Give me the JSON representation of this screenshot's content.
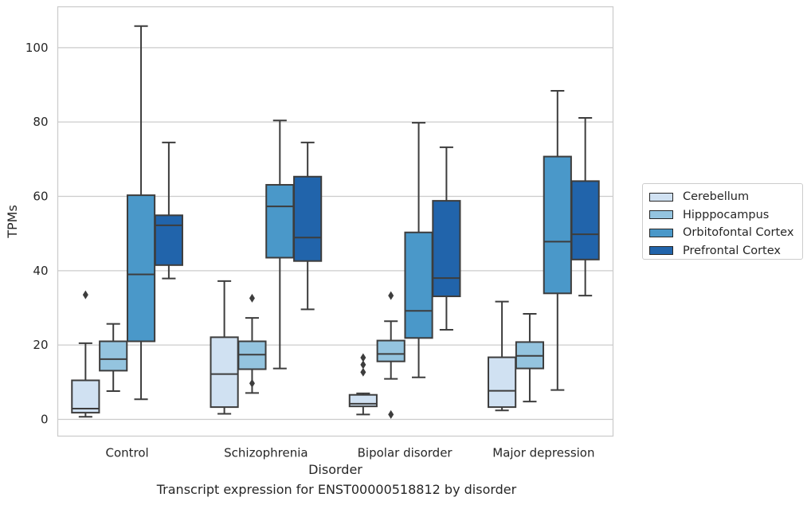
{
  "chart_data": {
    "type": "box",
    "caption": "Transcript expression for ENST00000518812 by disorder",
    "xlabel": "Disorder",
    "ylabel": "TPMs",
    "ylim": [
      -4.5,
      111
    ],
    "yticks": [
      0,
      20,
      40,
      60,
      80,
      100
    ],
    "grid": "horizontal",
    "legend_position": "right",
    "categories": [
      "Control",
      "Schizophrenia",
      "Bipolar disorder",
      "Major depression"
    ],
    "series": [
      {
        "name": "Cerebellum",
        "color": "#d0e1f2",
        "boxes": [
          {
            "whisker_low": 0.7,
            "q1": 1.8,
            "median": 2.9,
            "q3": 10.5,
            "whisker_high": 20.5,
            "outliers": [
              33.5
            ]
          },
          {
            "whisker_low": 1.5,
            "q1": 3.3,
            "median": 12.2,
            "q3": 22.1,
            "whisker_high": 37.2,
            "outliers": []
          },
          {
            "whisker_low": 1.3,
            "q1": 3.5,
            "median": 4.2,
            "q3": 6.6,
            "whisker_high": 7.0,
            "outliers": [
              12.7,
              14.7,
              16.6
            ]
          },
          {
            "whisker_low": 2.4,
            "q1": 3.3,
            "median": 7.7,
            "q3": 16.7,
            "whisker_high": 31.7,
            "outliers": []
          }
        ]
      },
      {
        "name": "Hipppocampus",
        "color": "#94c4df",
        "boxes": [
          {
            "whisker_low": 7.6,
            "q1": 13.1,
            "median": 16.2,
            "q3": 21.0,
            "whisker_high": 25.7,
            "outliers": []
          },
          {
            "whisker_low": 7.1,
            "q1": 13.5,
            "median": 17.4,
            "q3": 21.0,
            "whisker_high": 27.3,
            "outliers": [
              9.7,
              32.6
            ]
          },
          {
            "whisker_low": 10.9,
            "q1": 15.6,
            "median": 17.6,
            "q3": 21.2,
            "whisker_high": 26.4,
            "outliers": [
              1.3,
              33.3
            ]
          },
          {
            "whisker_low": 4.8,
            "q1": 13.7,
            "median": 17.1,
            "q3": 20.8,
            "whisker_high": 28.4,
            "outliers": []
          }
        ]
      },
      {
        "name": "Orbitofontal Cortex",
        "color": "#4a98c9",
        "boxes": [
          {
            "whisker_low": 5.4,
            "q1": 21.0,
            "median": 39.0,
            "q3": 60.3,
            "whisker_high": 105.8,
            "outliers": []
          },
          {
            "whisker_low": 13.7,
            "q1": 43.5,
            "median": 57.3,
            "q3": 63.1,
            "whisker_high": 80.4,
            "outliers": []
          },
          {
            "whisker_low": 11.3,
            "q1": 21.9,
            "median": 29.2,
            "q3": 50.3,
            "whisker_high": 79.8,
            "outliers": []
          },
          {
            "whisker_low": 7.9,
            "q1": 33.9,
            "median": 47.8,
            "q3": 70.7,
            "whisker_high": 88.4,
            "outliers": []
          }
        ]
      },
      {
        "name": "Prefrontal Cortex",
        "color": "#2164ab",
        "boxes": [
          {
            "whisker_low": 37.9,
            "q1": 41.5,
            "median": 52.2,
            "q3": 54.9,
            "whisker_high": 74.5,
            "outliers": []
          },
          {
            "whisker_low": 29.6,
            "q1": 42.6,
            "median": 48.9,
            "q3": 65.3,
            "whisker_high": 74.5,
            "outliers": []
          },
          {
            "whisker_low": 24.1,
            "q1": 33.1,
            "median": 38.0,
            "q3": 58.8,
            "whisker_high": 73.2,
            "outliers": []
          },
          {
            "whisker_low": 33.3,
            "q1": 43.0,
            "median": 49.8,
            "q3": 64.1,
            "whisker_high": 81.1,
            "outliers": []
          }
        ]
      }
    ]
  }
}
